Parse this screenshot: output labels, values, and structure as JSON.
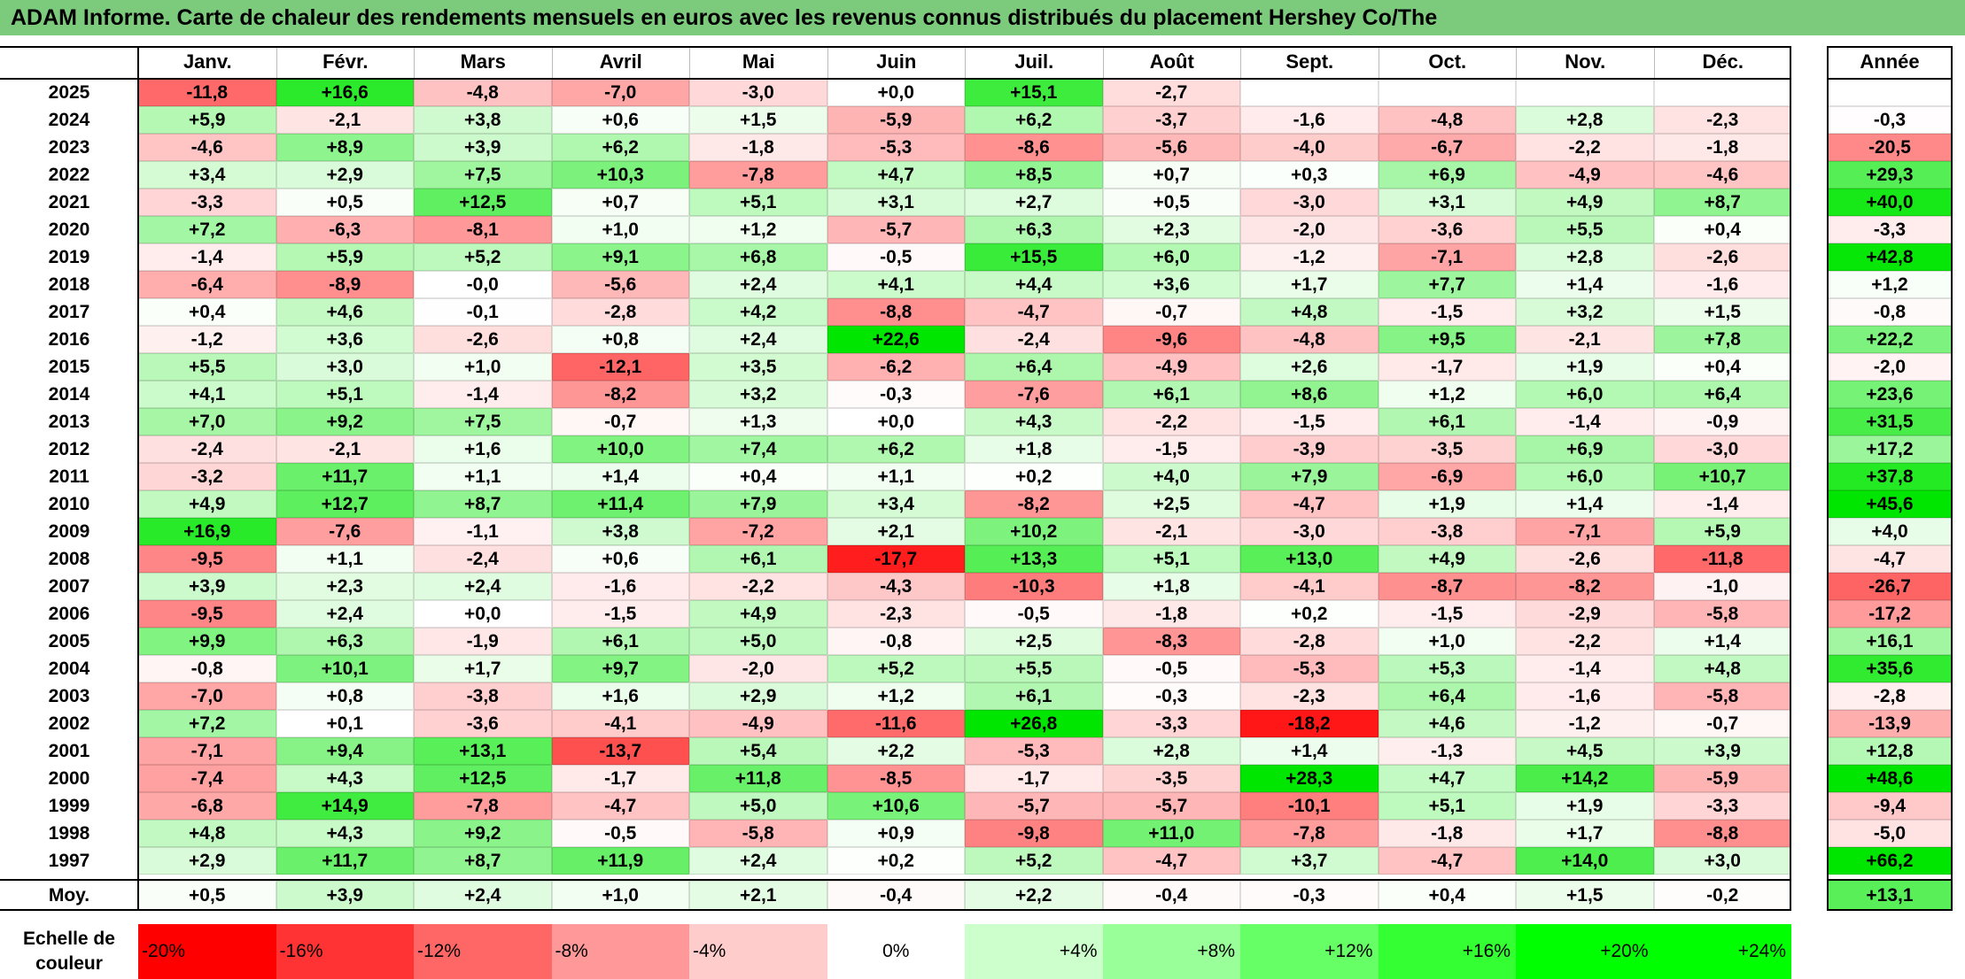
{
  "title": "ADAM Informe. Carte de chaleur des rendements mensuels en euros avec les revenus connus distribués du placement Hershey Co/The",
  "chart_data": {
    "type": "heatmap",
    "title": "ADAM Informe. Carte de chaleur des rendements mensuels en euros avec les revenus connus distribués du placement Hershey Co/The",
    "columns": [
      "Janv.",
      "Févr.",
      "Mars",
      "Avril",
      "Mai",
      "Juin",
      "Juil.",
      "Août",
      "Sept.",
      "Oct.",
      "Nov.",
      "Déc."
    ],
    "year_header": "Année",
    "rows": [
      {
        "year": "2025",
        "values": [
          "-11,8",
          "+16,6",
          "-4,8",
          "-7,0",
          "-3,0",
          "+0,0",
          "+15,1",
          "-2,7",
          "",
          "",
          "",
          ""
        ],
        "annual": ""
      },
      {
        "year": "2024",
        "values": [
          "+5,9",
          "-2,1",
          "+3,8",
          "+0,6",
          "+1,5",
          "-5,9",
          "+6,2",
          "-3,7",
          "-1,6",
          "-4,8",
          "+2,8",
          "-2,3"
        ],
        "annual": "-0,3"
      },
      {
        "year": "2023",
        "values": [
          "-4,6",
          "+8,9",
          "+3,9",
          "+6,2",
          "-1,8",
          "-5,3",
          "-8,6",
          "-5,6",
          "-4,0",
          "-6,7",
          "-2,2",
          "-1,8"
        ],
        "annual": "-20,5"
      },
      {
        "year": "2022",
        "values": [
          "+3,4",
          "+2,9",
          "+7,5",
          "+10,3",
          "-7,8",
          "+4,7",
          "+8,5",
          "+0,7",
          "+0,3",
          "+6,9",
          "-4,9",
          "-4,6"
        ],
        "annual": "+29,3"
      },
      {
        "year": "2021",
        "values": [
          "-3,3",
          "+0,5",
          "+12,5",
          "+0,7",
          "+5,1",
          "+3,1",
          "+2,7",
          "+0,5",
          "-3,0",
          "+3,1",
          "+4,9",
          "+8,7"
        ],
        "annual": "+40,0"
      },
      {
        "year": "2020",
        "values": [
          "+7,2",
          "-6,3",
          "-8,1",
          "+1,0",
          "+1,2",
          "-5,7",
          "+6,3",
          "+2,3",
          "-2,0",
          "-3,6",
          "+5,5",
          "+0,4"
        ],
        "annual": "-3,3"
      },
      {
        "year": "2019",
        "values": [
          "-1,4",
          "+5,9",
          "+5,2",
          "+9,1",
          "+6,8",
          "-0,5",
          "+15,5",
          "+6,0",
          "-1,2",
          "-7,1",
          "+2,8",
          "-2,6"
        ],
        "annual": "+42,8"
      },
      {
        "year": "2018",
        "values": [
          "-6,4",
          "-8,9",
          "-0,0",
          "-5,6",
          "+2,4",
          "+4,1",
          "+4,4",
          "+3,6",
          "+1,7",
          "+7,7",
          "+1,4",
          "-1,6"
        ],
        "annual": "+1,2"
      },
      {
        "year": "2017",
        "values": [
          "+0,4",
          "+4,6",
          "-0,1",
          "-2,8",
          "+4,2",
          "-8,8",
          "-4,7",
          "-0,7",
          "+4,8",
          "-1,5",
          "+3,2",
          "+1,5"
        ],
        "annual": "-0,8"
      },
      {
        "year": "2016",
        "values": [
          "-1,2",
          "+3,6",
          "-2,6",
          "+0,8",
          "+2,4",
          "+22,6",
          "-2,4",
          "-9,6",
          "-4,8",
          "+9,5",
          "-2,1",
          "+7,8"
        ],
        "annual": "+22,2"
      },
      {
        "year": "2015",
        "values": [
          "+5,5",
          "+3,0",
          "+1,0",
          "-12,1",
          "+3,5",
          "-6,2",
          "+6,4",
          "-4,9",
          "+2,6",
          "-1,7",
          "+1,9",
          "+0,4"
        ],
        "annual": "-2,0"
      },
      {
        "year": "2014",
        "values": [
          "+4,1",
          "+5,1",
          "-1,4",
          "-8,2",
          "+3,2",
          "-0,3",
          "-7,6",
          "+6,1",
          "+8,6",
          "+1,2",
          "+6,0",
          "+6,4"
        ],
        "annual": "+23,6"
      },
      {
        "year": "2013",
        "values": [
          "+7,0",
          "+9,2",
          "+7,5",
          "-0,7",
          "+1,3",
          "+0,0",
          "+4,3",
          "-2,2",
          "-1,5",
          "+6,1",
          "-1,4",
          "-0,9"
        ],
        "annual": "+31,5"
      },
      {
        "year": "2012",
        "values": [
          "-2,4",
          "-2,1",
          "+1,6",
          "+10,0",
          "+7,4",
          "+6,2",
          "+1,8",
          "-1,5",
          "-3,9",
          "-3,5",
          "+6,9",
          "-3,0"
        ],
        "annual": "+17,2"
      },
      {
        "year": "2011",
        "values": [
          "-3,2",
          "+11,7",
          "+1,1",
          "+1,4",
          "+0,4",
          "+1,1",
          "+0,2",
          "+4,0",
          "+7,9",
          "-6,9",
          "+6,0",
          "+10,7"
        ],
        "annual": "+37,8"
      },
      {
        "year": "2010",
        "values": [
          "+4,9",
          "+12,7",
          "+8,7",
          "+11,4",
          "+7,9",
          "+3,4",
          "-8,2",
          "+2,5",
          "-4,7",
          "+1,9",
          "+1,4",
          "-1,4"
        ],
        "annual": "+45,6"
      },
      {
        "year": "2009",
        "values": [
          "+16,9",
          "-7,6",
          "-1,1",
          "+3,8",
          "-7,2",
          "+2,1",
          "+10,2",
          "-2,1",
          "-3,0",
          "-3,8",
          "-7,1",
          "+5,9"
        ],
        "annual": "+4,0"
      },
      {
        "year": "2008",
        "values": [
          "-9,5",
          "+1,1",
          "-2,4",
          "+0,6",
          "+6,1",
          "-17,7",
          "+13,3",
          "+5,1",
          "+13,0",
          "+4,9",
          "-2,6",
          "-11,8"
        ],
        "annual": "-4,7"
      },
      {
        "year": "2007",
        "values": [
          "+3,9",
          "+2,3",
          "+2,4",
          "-1,6",
          "-2,2",
          "-4,3",
          "-10,3",
          "+1,8",
          "-4,1",
          "-8,7",
          "-8,2",
          "-1,0"
        ],
        "annual": "-26,7"
      },
      {
        "year": "2006",
        "values": [
          "-9,5",
          "+2,4",
          "+0,0",
          "-1,5",
          "+4,9",
          "-2,3",
          "-0,5",
          "-1,8",
          "+0,2",
          "-1,5",
          "-2,9",
          "-5,8"
        ],
        "annual": "-17,2"
      },
      {
        "year": "2005",
        "values": [
          "+9,9",
          "+6,3",
          "-1,9",
          "+6,1",
          "+5,0",
          "-0,8",
          "+2,5",
          "-8,3",
          "-2,8",
          "+1,0",
          "-2,2",
          "+1,4"
        ],
        "annual": "+16,1"
      },
      {
        "year": "2004",
        "values": [
          "-0,8",
          "+10,1",
          "+1,7",
          "+9,7",
          "-2,0",
          "+5,2",
          "+5,5",
          "-0,5",
          "-5,3",
          "+5,3",
          "-1,4",
          "+4,8"
        ],
        "annual": "+35,6"
      },
      {
        "year": "2003",
        "values": [
          "-7,0",
          "+0,8",
          "-3,8",
          "+1,6",
          "+2,9",
          "+1,2",
          "+6,1",
          "-0,3",
          "-2,3",
          "+6,4",
          "-1,6",
          "-5,8"
        ],
        "annual": "-2,8"
      },
      {
        "year": "2002",
        "values": [
          "+7,2",
          "+0,1",
          "-3,6",
          "-4,1",
          "-4,9",
          "-11,6",
          "+26,8",
          "-3,3",
          "-18,2",
          "+4,6",
          "-1,2",
          "-0,7"
        ],
        "annual": "-13,9"
      },
      {
        "year": "2001",
        "values": [
          "-7,1",
          "+9,4",
          "+13,1",
          "-13,7",
          "+5,4",
          "+2,2",
          "-5,3",
          "+2,8",
          "+1,4",
          "-1,3",
          "+4,5",
          "+3,9"
        ],
        "annual": "+12,8"
      },
      {
        "year": "2000",
        "values": [
          "-7,4",
          "+4,3",
          "+12,5",
          "-1,7",
          "+11,8",
          "-8,5",
          "-1,7",
          "-3,5",
          "+28,3",
          "+4,7",
          "+14,2",
          "-5,9"
        ],
        "annual": "+48,6"
      },
      {
        "year": "1999",
        "values": [
          "-6,8",
          "+14,9",
          "-7,8",
          "-4,7",
          "+5,0",
          "+10,6",
          "-5,7",
          "-5,7",
          "-10,1",
          "+5,1",
          "+1,9",
          "-3,3"
        ],
        "annual": "-9,4"
      },
      {
        "year": "1998",
        "values": [
          "+4,8",
          "+4,3",
          "+9,2",
          "-0,5",
          "-5,8",
          "+0,9",
          "-9,8",
          "+11,0",
          "-7,8",
          "-1,8",
          "+1,7",
          "-8,8"
        ],
        "annual": "-5,0"
      },
      {
        "year": "1997",
        "values": [
          "+2,9",
          "+11,7",
          "+8,7",
          "+11,9",
          "+2,4",
          "+0,2",
          "+5,2",
          "-4,7",
          "+3,7",
          "-4,7",
          "+14,0",
          "+3,0"
        ],
        "annual": "+66,2"
      }
    ],
    "average": {
      "label": "Moy.",
      "values": [
        "+0,5",
        "+3,9",
        "+2,4",
        "+1,0",
        "+2,1",
        "-0,4",
        "+2,2",
        "-0,4",
        "-0,3",
        "+0,4",
        "+1,5",
        "-0,2"
      ],
      "annual": "+13,1"
    },
    "color_scale": {
      "title": "Echelle de couleur",
      "labels": [
        "-20%",
        "-16%",
        "-12%",
        "-8%",
        "-4%",
        "0%",
        "+4%",
        "+8%",
        "+12%",
        "+16%",
        "+20%",
        "+24%"
      ],
      "colors": [
        "#ff0000",
        "#ff3333",
        "#ff6666",
        "#ff9999",
        "#ffcccc",
        "#ffffff",
        "#ccffcc",
        "#99ff99",
        "#66ff66",
        "#33ff33",
        "#00ff00",
        "#00ff00"
      ]
    },
    "color_range": [
      -20,
      20
    ],
    "negative_color": "#ff0000",
    "positive_color": "#00e600"
  }
}
